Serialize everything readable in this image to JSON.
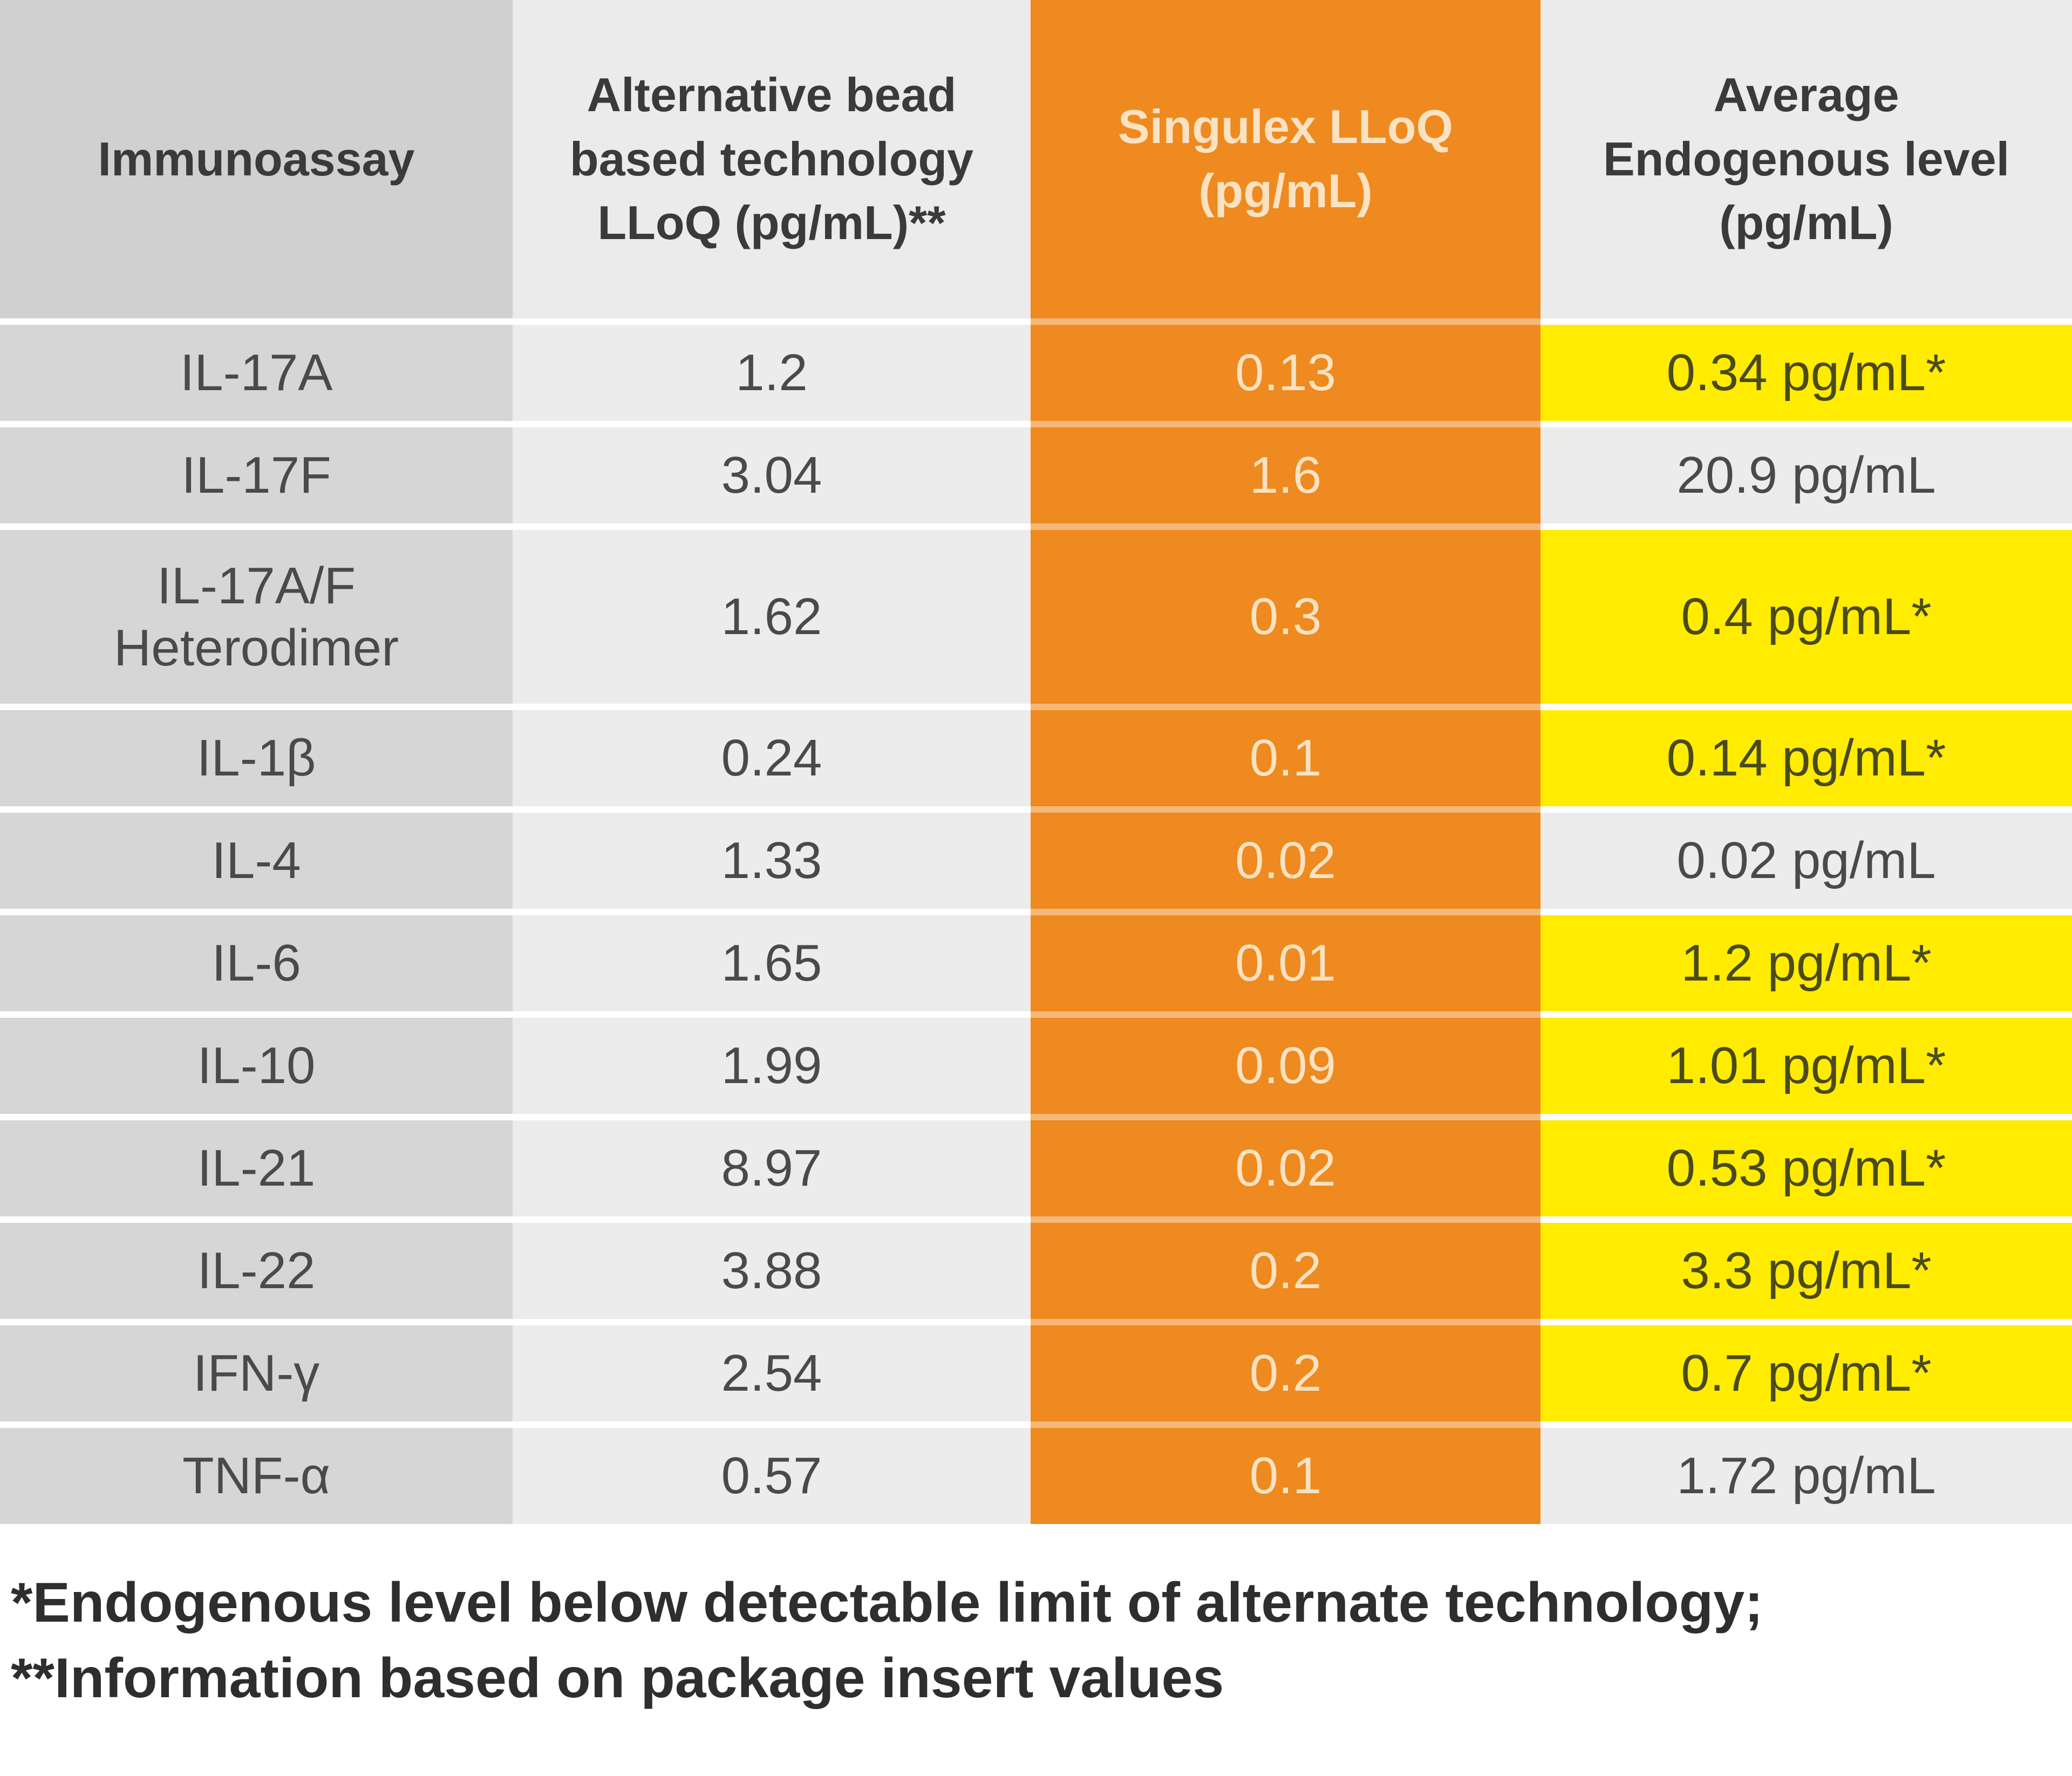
{
  "table": {
    "headers": [
      "Immunoassay",
      "Alternative bead based technology LLoQ (pg/mL)**",
      "Singulex LLoQ (pg/mL)",
      "Average Endogenous level (pg/mL)"
    ],
    "rows": [
      {
        "assay": "IL-17A",
        "alt": "1.2",
        "singulex": "0.13",
        "endogenous": "0.34 pg/mL*",
        "highlight": true
      },
      {
        "assay": "IL-17F",
        "alt": "3.04",
        "singulex": "1.6",
        "endogenous": "20.9 pg/mL",
        "highlight": false
      },
      {
        "assay": "IL-17A/F Heterodimer",
        "alt": "1.62",
        "singulex": "0.3",
        "endogenous": "0.4 pg/mL*",
        "highlight": true
      },
      {
        "assay": "IL-1β",
        "alt": "0.24",
        "singulex": "0.1",
        "endogenous": "0.14 pg/mL*",
        "highlight": true
      },
      {
        "assay": "IL-4",
        "alt": "1.33",
        "singulex": "0.02",
        "endogenous": "0.02 pg/mL",
        "highlight": false
      },
      {
        "assay": "IL-6",
        "alt": "1.65",
        "singulex": "0.01",
        "endogenous": "1.2 pg/mL*",
        "highlight": true
      },
      {
        "assay": "IL-10",
        "alt": "1.99",
        "singulex": "0.09",
        "endogenous": "1.01 pg/mL*",
        "highlight": true
      },
      {
        "assay": "IL-21",
        "alt": "8.97",
        "singulex": "0.02",
        "endogenous": "0.53 pg/mL*",
        "highlight": true
      },
      {
        "assay": "IL-22",
        "alt": "3.88",
        "singulex": "0.2",
        "endogenous": "3.3 pg/mL*",
        "highlight": true
      },
      {
        "assay": "IFN-γ",
        "alt": "2.54",
        "singulex": "0.2",
        "endogenous": "0.7 pg/mL*",
        "highlight": true
      },
      {
        "assay": "TNF-α",
        "alt": "0.57",
        "singulex": "0.1",
        "endogenous": "1.72 pg/mL",
        "highlight": false
      }
    ]
  },
  "footnotes": [
    "*Endogenous level below detectable limit of alternate technology;",
    "**Information based on package insert values"
  ],
  "colors": {
    "singulex_column": "#ee8a1f",
    "highlight": "#ffec00",
    "assay_column": "#d6d6d7",
    "light_column": "#ececec"
  }
}
